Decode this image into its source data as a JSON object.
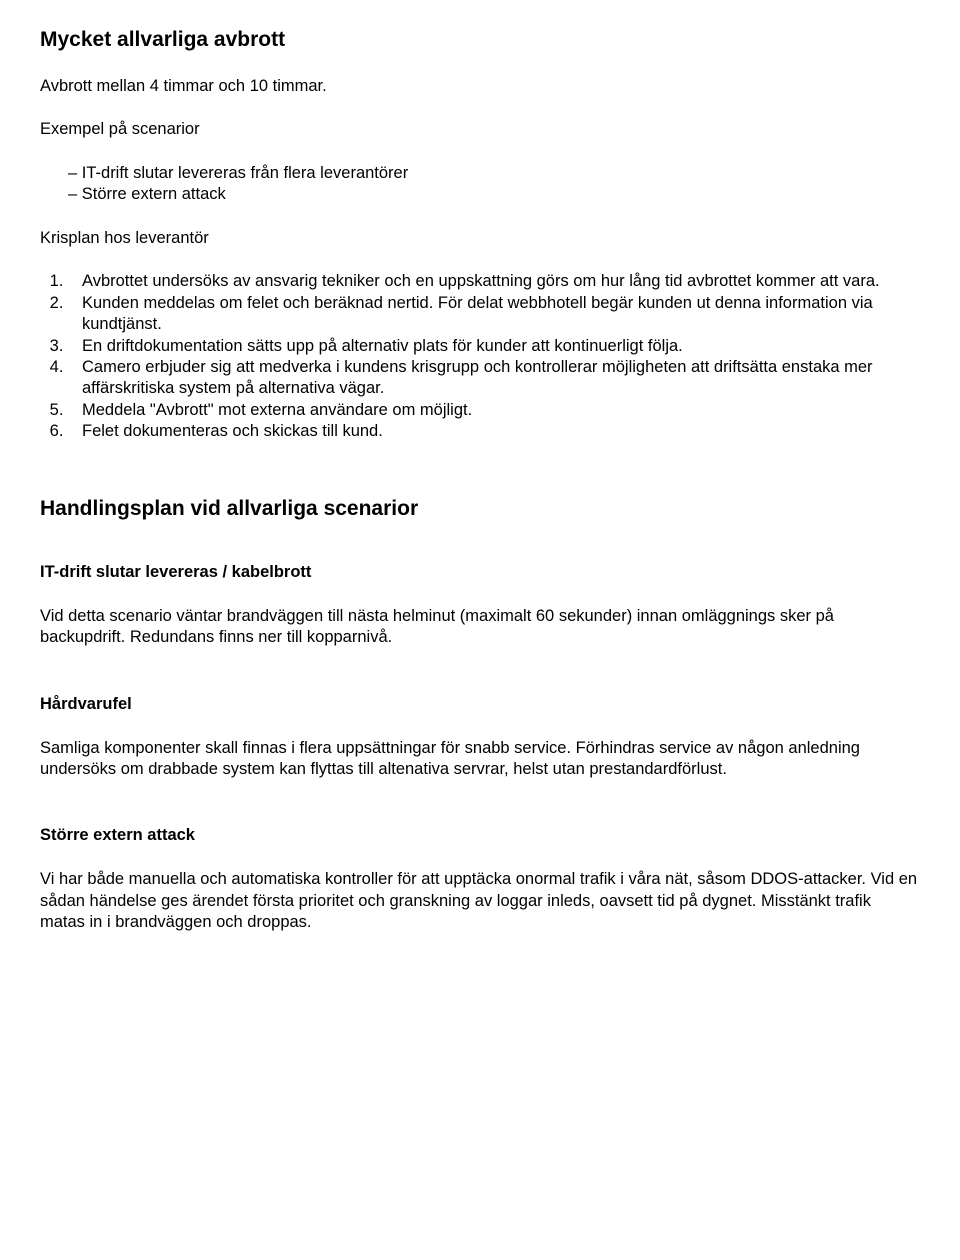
{
  "colors": {
    "text": "#000000",
    "background": "#ffffff"
  },
  "typography": {
    "base_font": "Arial",
    "body_size_pt": 12,
    "heading_size_pt": 16,
    "sub_size_pt": 12,
    "body_weight": "normal",
    "heading_weight": "bold"
  },
  "section1": {
    "title": "Mycket allvarliga avbrott",
    "intro": "Avbrott mellan 4 timmar och 10 timmar.",
    "example_label": "Exempel på scenarior",
    "examples": [
      "IT-drift slutar levereras från flera leverantörer",
      "Större extern attack"
    ],
    "krisplan_label": "Krisplan hos leverantör",
    "krisplan_items": [
      "Avbrottet undersöks av ansvarig tekniker och en uppskattning görs om hur lång tid avbrottet kommer att vara.",
      "Kunden meddelas om felet och beräknad nertid. För delat webbhotell begär kunden ut denna information via kundtjänst.",
      "En driftdokumentation sätts upp på alternativ plats för kunder att kontinuerligt följa.",
      "Camero erbjuder sig att medverka i kundens krisgrupp och kontrollerar möjligheten att driftsätta enstaka mer affärskritiska system på alternativa vägar.",
      "Meddela \"Avbrott\" mot externa användare om möjligt.",
      "Felet dokumenteras och skickas till kund."
    ]
  },
  "section2": {
    "title": "Handlingsplan vid allvarliga scenarior",
    "sub1": {
      "heading": "IT-drift slutar levereras / kabelbrott",
      "text": "Vid detta scenario väntar brandväggen till nästa helminut (maximalt 60 sekunder) innan omläggnings sker på backupdrift. Redundans finns ner till kopparnivå."
    },
    "sub2": {
      "heading": "Hårdvarufel",
      "text": "Samliga komponenter skall finnas i flera uppsättningar för snabb service. Förhindras service av någon anledning undersöks om drabbade system kan flyttas till altenativa servrar, helst utan prestandardförlust."
    },
    "sub3": {
      "heading": "Större extern attack",
      "text": "Vi har både manuella och automatiska kontroller för att upptäcka onormal trafik i våra nät, såsom DDOS-attacker. Vid en sådan händelse ges ärendet första prioritet och granskning av loggar inleds, oavsett tid på dygnet. Misstänkt trafik matas in i brandväggen och droppas."
    }
  }
}
